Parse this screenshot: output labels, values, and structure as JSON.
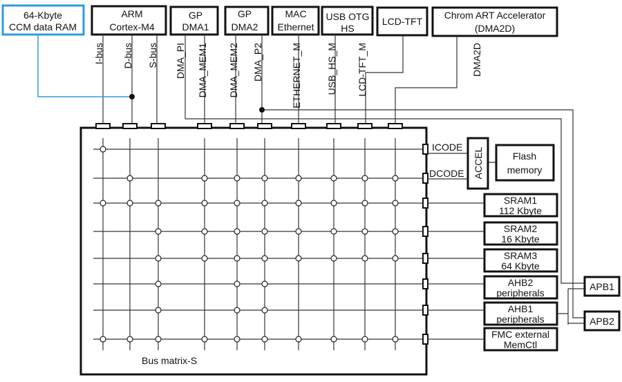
{
  "masters": {
    "ccm": [
      "64-Kbyte",
      "CCM data RAM"
    ],
    "arm": [
      "ARM",
      "Cortex-M4"
    ],
    "dma1": [
      "GP",
      "DMA1"
    ],
    "dma2": [
      "GP",
      "DMA2"
    ],
    "mac": [
      "MAC",
      "Ethernet"
    ],
    "usb": [
      "USB OTG",
      "HS"
    ],
    "lcd": [
      "LCD-TFT"
    ],
    "chrom": [
      "Chrom ART Accelerator",
      "(DMA2D)"
    ]
  },
  "bus_labels": [
    "I-bus",
    "D-bus",
    "S-bus",
    "DMA_PI",
    "DMA_MEM1",
    "DMA_MEM2",
    "DMA_P2",
    "ETHERNET_M",
    "USB_HS_M",
    "LCD-TFT_M",
    "DMA2D"
  ],
  "slave_labels": {
    "icode": "ICODE",
    "dcode": "DCODE"
  },
  "slaves": {
    "accel": "ACCEL",
    "flash": [
      "Flash",
      "memory"
    ],
    "sram1": [
      "SRAM1",
      "112 Kbyte"
    ],
    "sram2": [
      "SRAM2",
      "16 Kbyte"
    ],
    "sram3": [
      "SRAM3",
      "64 Kbyte"
    ],
    "ahb2": [
      "AHB2",
      "peripherals"
    ],
    "ahb1": [
      "AHB1",
      "peripherals"
    ],
    "fmc": [
      "FMC external",
      "MemCtl"
    ],
    "apb1": "APB1",
    "apb2": "APB2"
  },
  "matrix_title": "Bus matrix-S",
  "connections": [
    [
      1,
      0,
      0,
      0,
      0,
      0,
      0,
      0,
      0,
      0
    ],
    [
      0,
      1,
      0,
      1,
      1,
      1,
      1,
      1,
      1,
      1
    ],
    [
      1,
      1,
      1,
      1,
      1,
      1,
      1,
      1,
      1,
      1
    ],
    [
      0,
      0,
      1,
      1,
      1,
      1,
      1,
      1,
      1,
      1
    ],
    [
      0,
      0,
      1,
      1,
      1,
      1,
      1,
      1,
      1,
      1
    ],
    [
      0,
      0,
      1,
      0,
      1,
      1,
      0,
      0,
      0,
      0
    ],
    [
      0,
      0,
      1,
      0,
      1,
      1,
      0,
      0,
      0,
      0
    ],
    [
      1,
      1,
      1,
      1,
      1,
      1,
      1,
      1,
      1,
      1
    ]
  ],
  "colors": {
    "ccm_accent": "#2f9ae0"
  }
}
